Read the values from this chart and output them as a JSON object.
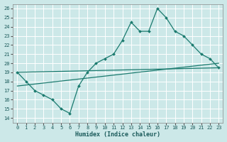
{
  "xlabel": "Humidex (Indice chaleur)",
  "bg_color": "#cce8e8",
  "grid_color": "#b0d0d0",
  "line_color": "#1a7a6e",
  "xlim": [
    -0.5,
    23.5
  ],
  "ylim": [
    13.5,
    26.5
  ],
  "yticks": [
    14,
    15,
    16,
    17,
    18,
    19,
    20,
    21,
    22,
    23,
    24,
    25,
    26
  ],
  "xticks": [
    0,
    1,
    2,
    3,
    4,
    5,
    6,
    7,
    8,
    9,
    10,
    11,
    12,
    13,
    14,
    15,
    16,
    17,
    18,
    19,
    20,
    21,
    22,
    23
  ],
  "line1_x": [
    0,
    1,
    2,
    3,
    4,
    5,
    6,
    7,
    8,
    9,
    10,
    11,
    12,
    13,
    14,
    15,
    16,
    17,
    18,
    19,
    20,
    21,
    22,
    23
  ],
  "line1_y": [
    19,
    18,
    17,
    16.5,
    16,
    15,
    14.5,
    17.5,
    19,
    20,
    20.5,
    21,
    22.5,
    24.5,
    23.5,
    23.5,
    26,
    25,
    23.5,
    23,
    22,
    21,
    20.5,
    19.5
  ],
  "line2_x": [
    0,
    23
  ],
  "line2_y": [
    19.0,
    19.5
  ],
  "line3_x": [
    0,
    23
  ],
  "line3_y": [
    17.5,
    20.0
  ]
}
